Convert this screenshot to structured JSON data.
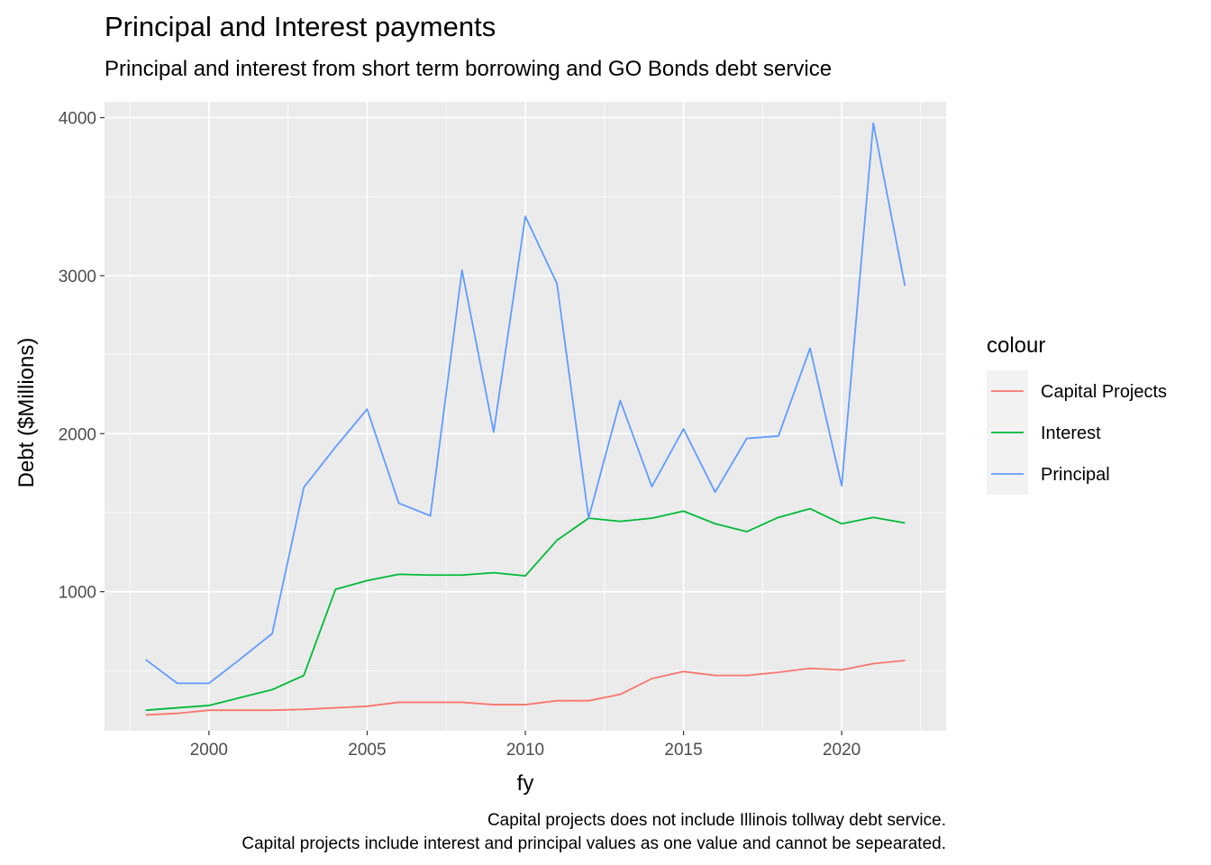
{
  "chart_data": {
    "type": "line",
    "title": "Principal and Interest payments",
    "subtitle": "Principal and interest from short term borrowing and GO Bonds debt service",
    "xlabel": "fy",
    "ylabel": "Debt ($Millions)",
    "caption": [
      "Capital projects does not include Illinois tollway debt service.",
      "Capital projects include interest and principal values as one value and cannot be sepearated."
    ],
    "xlim": [
      1996.7,
      2023.3
    ],
    "ylim": [
      120,
      4100
    ],
    "x_ticks": [
      2000,
      2005,
      2010,
      2015,
      2020
    ],
    "y_ticks": [
      1000,
      2000,
      3000,
      4000
    ],
    "legend_title": "colour",
    "legend_position": "right",
    "grid": true,
    "x": [
      1998,
      1999,
      2000,
      2001,
      2002,
      2003,
      2004,
      2005,
      2006,
      2007,
      2008,
      2009,
      2010,
      2011,
      2012,
      2013,
      2014,
      2015,
      2016,
      2017,
      2018,
      2019,
      2020,
      2021,
      2022
    ],
    "series": [
      {
        "name": "Capital Projects",
        "color": "#F8766D",
        "values": [
          220,
          230,
          250,
          250,
          250,
          255,
          265,
          275,
          300,
          300,
          300,
          285,
          285,
          310,
          310,
          350,
          450,
          495,
          470,
          470,
          490,
          515,
          505,
          545,
          565
        ]
      },
      {
        "name": "Interest",
        "color": "#00BA38",
        "values": [
          250,
          265,
          280,
          330,
          380,
          470,
          1015,
          1070,
          1110,
          1105,
          1105,
          1120,
          1100,
          1325,
          1465,
          1445,
          1465,
          1510,
          1430,
          1380,
          1470,
          1525,
          1430,
          1470,
          1435
        ]
      },
      {
        "name": "Principal",
        "color": "#619CFF",
        "values": [
          570,
          420,
          420,
          575,
          735,
          1660,
          1915,
          2155,
          1560,
          1480,
          3035,
          2010,
          3375,
          2950,
          1465,
          2210,
          1665,
          2030,
          1630,
          1970,
          1985,
          2540,
          1670,
          3965,
          2935
        ]
      }
    ]
  }
}
